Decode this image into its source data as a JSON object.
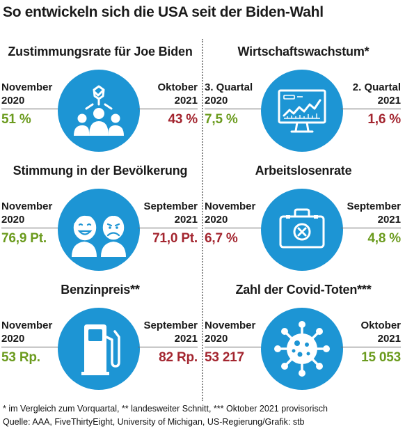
{
  "title": "So entwickeln sich die USA seit der Biden-Wahl",
  "colors": {
    "green": "#6b9b1e",
    "red": "#a3252f",
    "icon_bg": "#1d95d4"
  },
  "panels": [
    {
      "title": "Zustimmungsrate für Joe Biden",
      "icon": "approval-people-icon",
      "left": {
        "line1": "November",
        "line2": "2020",
        "value": "51 %",
        "trend": "green"
      },
      "right": {
        "line1": "Oktober",
        "line2": "2021",
        "value": "43 %",
        "trend": "red"
      }
    },
    {
      "title": "Wirtschaftswachstum*",
      "icon": "monitor-chart-icon",
      "left": {
        "line1": "3. Quartal",
        "line2": "2020",
        "value": "7,5 %",
        "trend": "green"
      },
      "right": {
        "line1": "2. Quartal",
        "line2": "2021",
        "value": "1,6 %",
        "trend": "red"
      }
    },
    {
      "title": "Stimmung in der Bevölkerung",
      "icon": "happy-sad-faces-icon",
      "left": {
        "line1": "November",
        "line2": "2020",
        "value": "76,9 Pt.",
        "trend": "green"
      },
      "right": {
        "line1": "September",
        "line2": "2021",
        "value": "71,0 Pt.",
        "trend": "red"
      }
    },
    {
      "title": "Arbeitslosenrate",
      "icon": "briefcase-x-icon",
      "left": {
        "line1": "November",
        "line2": "2020",
        "value": "6,7 %",
        "trend": "red"
      },
      "right": {
        "line1": "September",
        "line2": "2021",
        "value": "4,8 %",
        "trend": "green"
      }
    },
    {
      "title": "Benzinpreis**",
      "icon": "fuel-pump-icon",
      "left": {
        "line1": "November",
        "line2": "2020",
        "value": "53 Rp.",
        "trend": "green"
      },
      "right": {
        "line1": "September",
        "line2": "2021",
        "value": "82 Rp.",
        "trend": "red"
      }
    },
    {
      "title": "Zahl der Covid-Toten***",
      "icon": "virus-icon",
      "left": {
        "line1": "November",
        "line2": "2020",
        "value": "53 217",
        "trend": "red"
      },
      "right": {
        "line1": "Oktober",
        "line2": "2021",
        "value": "15 053",
        "trend": "green"
      }
    }
  ],
  "footer": {
    "note": "* im Vergleich zum Vorquartal, ** landesweiter Schnitt, *** Oktober 2021 provisorisch",
    "source": "Quelle: AAA, FiveThirtyEight, University of Michigan, US-Regierung/Grafik: stb"
  }
}
